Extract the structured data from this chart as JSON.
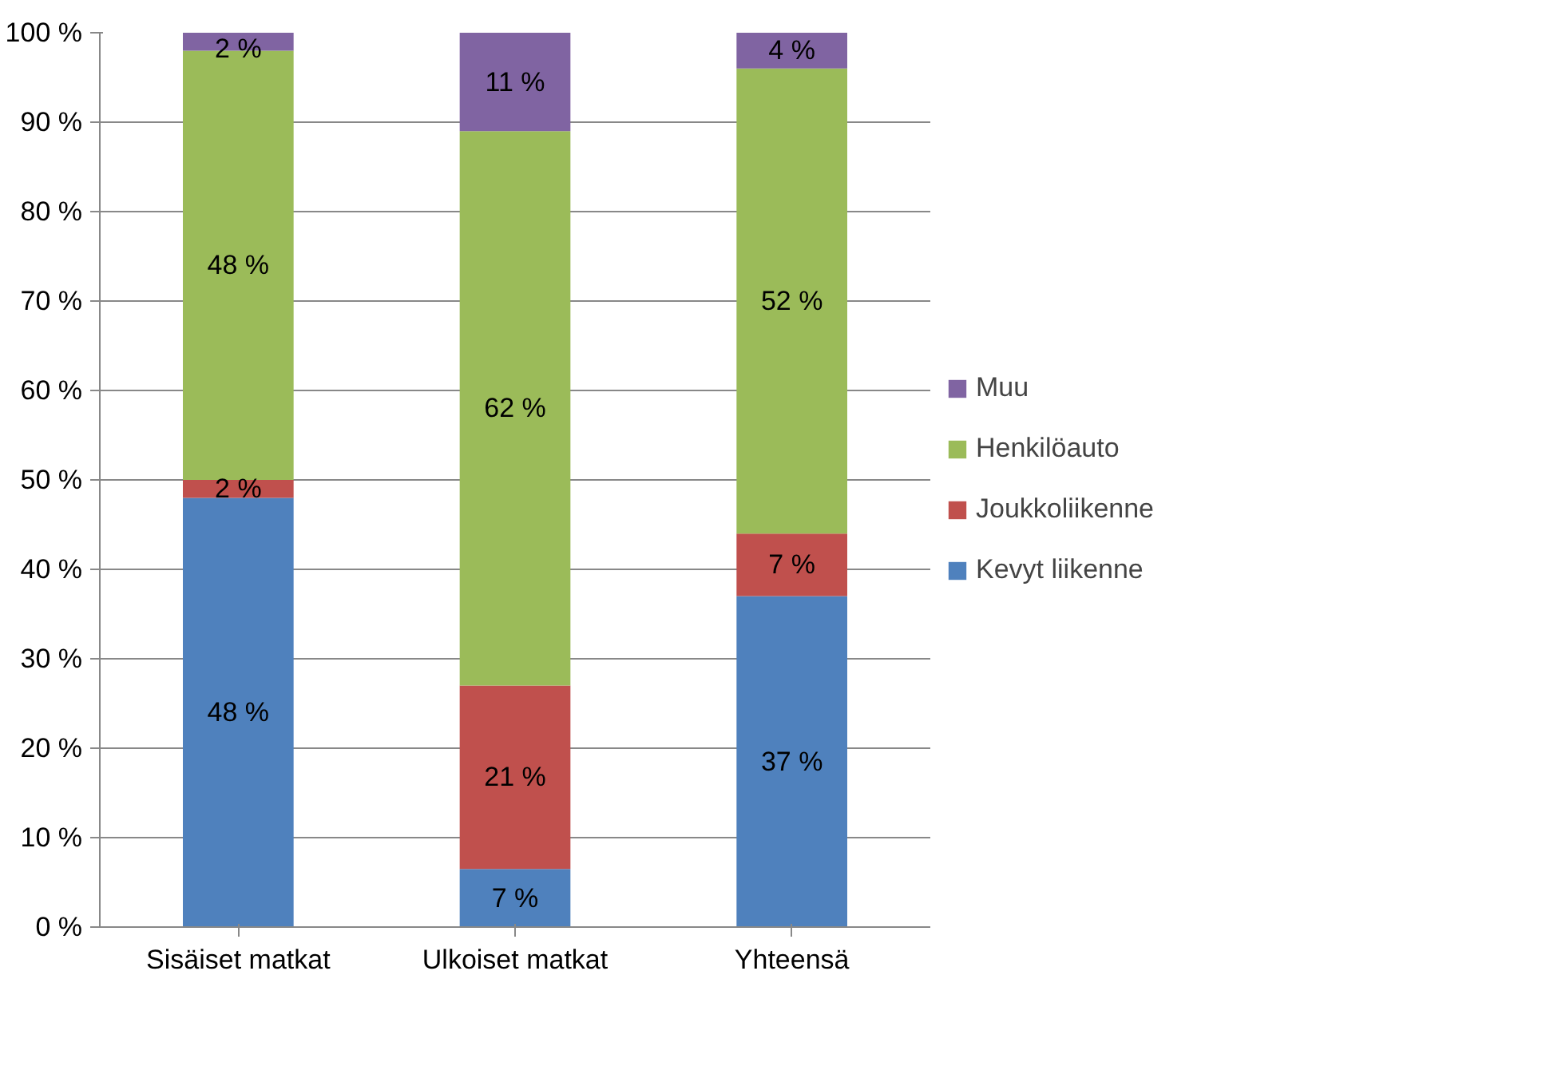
{
  "chart_data": {
    "type": "bar",
    "stacked": true,
    "categories": [
      "Sisäiset matkat",
      "Ulkoiset matkat",
      "Yhteensä"
    ],
    "series": [
      {
        "name": "Kevyt liikenne",
        "color": "#4f81bd",
        "values": [
          48,
          6.5,
          37
        ],
        "value_labels": [
          "48 %",
          "7 %",
          "37 %"
        ]
      },
      {
        "name": "Joukkoliikenne",
        "color": "#c0504d",
        "values": [
          2,
          20.5,
          7
        ],
        "value_labels": [
          "2 %",
          "21 %",
          "7 %"
        ]
      },
      {
        "name": "Henkilöauto",
        "color": "#9bbb59",
        "values": [
          48,
          62,
          52
        ],
        "value_labels": [
          "48 %",
          "62 %",
          "52 %"
        ]
      },
      {
        "name": "Muu",
        "color": "#8064a2",
        "values": [
          2,
          11,
          4
        ],
        "value_labels": [
          "2 %",
          "11 %",
          "4 %"
        ]
      }
    ],
    "ylim": [
      0,
      100
    ],
    "yticks": [
      {
        "value": 0,
        "label": "0 %"
      },
      {
        "value": 10,
        "label": "10 %"
      },
      {
        "value": 20,
        "label": "20 %"
      },
      {
        "value": 30,
        "label": "30 %"
      },
      {
        "value": 40,
        "label": "40 %"
      },
      {
        "value": 50,
        "label": "50 %"
      },
      {
        "value": 60,
        "label": "60 %"
      },
      {
        "value": 70,
        "label": "70 %"
      },
      {
        "value": 80,
        "label": "80 %"
      },
      {
        "value": 90,
        "label": "90 %"
      },
      {
        "value": 100,
        "label": "100 %"
      }
    ],
    "grid": "y",
    "legend": "right"
  }
}
